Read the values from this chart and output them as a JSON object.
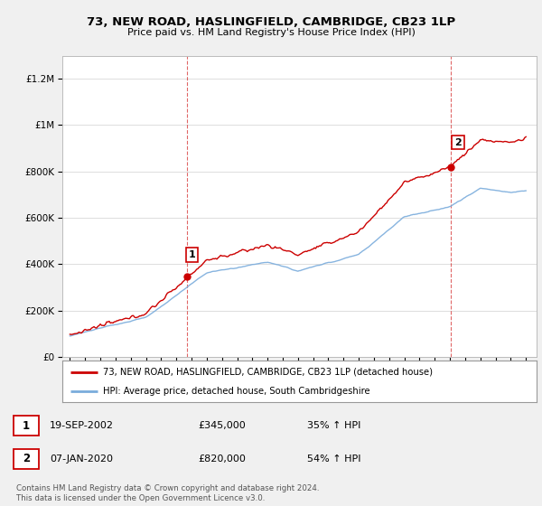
{
  "title": "73, NEW ROAD, HASLINGFIELD, CAMBRIDGE, CB23 1LP",
  "subtitle": "Price paid vs. HM Land Registry's House Price Index (HPI)",
  "legend_line1": "73, NEW ROAD, HASLINGFIELD, CAMBRIDGE, CB23 1LP (detached house)",
  "legend_line2": "HPI: Average price, detached house, South Cambridgeshire",
  "sale1_date": "19-SEP-2002",
  "sale1_price": "£345,000",
  "sale1_hpi": "35% ↑ HPI",
  "sale1_year": 2002.72,
  "sale1_value": 345000,
  "sale2_date": "07-JAN-2020",
  "sale2_price": "£820,000",
  "sale2_hpi": "54% ↑ HPI",
  "sale2_year": 2020.03,
  "sale2_value": 820000,
  "footer": "Contains HM Land Registry data © Crown copyright and database right 2024.\nThis data is licensed under the Open Government Licence v3.0.",
  "line_color_red": "#cc0000",
  "line_color_blue": "#7aacdc",
  "marker_box_color": "#cc0000",
  "background_color": "#f0f0f0",
  "plot_bg_color": "#ffffff",
  "ylim_max": 1300000,
  "xlim_start": 1994.5,
  "xlim_end": 2025.7
}
